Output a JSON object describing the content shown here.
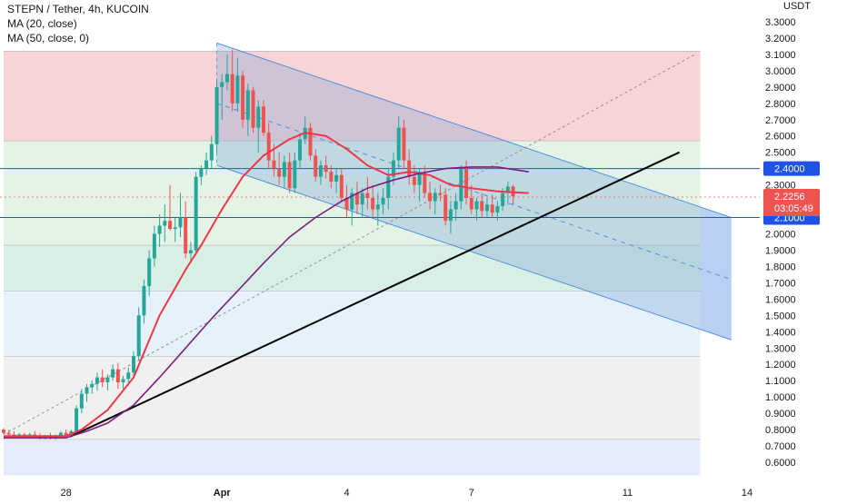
{
  "legend": {
    "title": "STEPN / Tether, 4h, KUCOIN",
    "ma20": "MA (20, close)",
    "ma50": "MA (50, close, 0)"
  },
  "currency": "USDT",
  "colors": {
    "up": "#26a69a",
    "down": "#ef5350",
    "ma20": "#f23645",
    "ma50": "#7b1e7a",
    "trendline": "#000000",
    "hline": "#1e53e5",
    "channel_line": "#4a90e2"
  },
  "chart_data": {
    "type": "candlestick",
    "symbol": "STEPN / Tether",
    "interval": "4h",
    "exchange": "KUCOIN",
    "ylim": [
      0.55,
      3.4
    ],
    "y_ticks": [
      "0.6000",
      "0.7000",
      "0.8000",
      "0.9000",
      "1.0000",
      "1.1000",
      "1.2000",
      "1.3000",
      "1.4000",
      "1.5000",
      "1.6000",
      "1.7000",
      "1.8000",
      "1.9000",
      "2.0000",
      "2.1000",
      "2.2000",
      "2.3000",
      "2.4000",
      "2.5000",
      "2.6000",
      "2.7000",
      "2.8000",
      "2.9000",
      "3.0000",
      "3.1000",
      "3.2000",
      "3.3000"
    ],
    "x_ticks": [
      {
        "label": "28",
        "bar": 12
      },
      {
        "label": "Apr",
        "bar": 42
      },
      {
        "label": "4",
        "bar": 66
      },
      {
        "label": "7",
        "bar": 90
      },
      {
        "label": "11",
        "bar": 120
      },
      {
        "label": "14",
        "bar": 143
      }
    ],
    "last_price": {
      "value": 2.2256,
      "label": "2.2256",
      "countdown": "03:05:49"
    },
    "horizontal_lines": [
      {
        "value": 2.4,
        "label": "2.4000"
      },
      {
        "value": 2.1,
        "label": "2.1000"
      }
    ],
    "fib_zones": [
      {
        "from": 2.57,
        "to": 3.12,
        "color": "#f7c6c8"
      },
      {
        "from": 1.93,
        "to": 2.57,
        "color": "#d9f0df"
      },
      {
        "from": 1.65,
        "to": 1.93,
        "color": "#c9eadb"
      },
      {
        "from": 1.25,
        "to": 1.65,
        "color": "#dcecf9"
      },
      {
        "from": 0.74,
        "to": 1.25,
        "color": "#ebebeb"
      },
      {
        "from": 0.52,
        "to": 0.74,
        "color": "#dde4fb"
      }
    ],
    "fib_zone_bars": [
      0,
      134
    ],
    "channel": {
      "upper": [
        {
          "bar": 41,
          "value": 3.17
        },
        {
          "bar": 140,
          "value": 2.1
        }
      ],
      "lower": [
        {
          "bar": 41,
          "value": 2.42
        },
        {
          "bar": 140,
          "value": 1.35
        }
      ],
      "mid": [
        {
          "bar": 41,
          "value": 2.8
        },
        {
          "bar": 140,
          "value": 1.72
        }
      ]
    },
    "channel_extension_bars": [
      134,
      140
    ],
    "trendline": [
      {
        "bar": 13,
        "value": 0.76
      },
      {
        "bar": 130,
        "value": 2.5
      }
    ],
    "diagonal_dotted": [
      {
        "bar": 0,
        "value": 0.77
      },
      {
        "bar": 133,
        "value": 3.1
      }
    ],
    "candles": [
      [
        0.8,
        0.81,
        0.77,
        0.78
      ],
      [
        0.78,
        0.8,
        0.76,
        0.77
      ],
      [
        0.77,
        0.79,
        0.75,
        0.76
      ],
      [
        0.76,
        0.78,
        0.75,
        0.77
      ],
      [
        0.77,
        0.78,
        0.75,
        0.76
      ],
      [
        0.76,
        0.78,
        0.75,
        0.77
      ],
      [
        0.77,
        0.79,
        0.75,
        0.76
      ],
      [
        0.76,
        0.78,
        0.74,
        0.75
      ],
      [
        0.75,
        0.77,
        0.74,
        0.76
      ],
      [
        0.76,
        0.78,
        0.74,
        0.75
      ],
      [
        0.75,
        0.77,
        0.74,
        0.76
      ],
      [
        0.76,
        0.79,
        0.75,
        0.78
      ],
      [
        0.78,
        0.8,
        0.75,
        0.76
      ],
      [
        0.76,
        0.8,
        0.75,
        0.79
      ],
      [
        0.79,
        0.95,
        0.78,
        0.93
      ],
      [
        0.93,
        1.05,
        0.9,
        1.02
      ],
      [
        1.02,
        1.08,
        0.97,
        1.06
      ],
      [
        1.06,
        1.1,
        1.02,
        1.08
      ],
      [
        1.08,
        1.15,
        1.04,
        1.12
      ],
      [
        1.12,
        1.17,
        1.06,
        1.09
      ],
      [
        1.09,
        1.14,
        1.04,
        1.12
      ],
      [
        1.12,
        1.2,
        1.1,
        1.17
      ],
      [
        1.17,
        1.21,
        1.05,
        1.09
      ],
      [
        1.09,
        1.13,
        1.05,
        1.11
      ],
      [
        1.11,
        1.18,
        1.07,
        1.15
      ],
      [
        1.15,
        1.28,
        1.12,
        1.25
      ],
      [
        1.25,
        1.55,
        1.22,
        1.5
      ],
      [
        1.5,
        1.72,
        1.45,
        1.68
      ],
      [
        1.68,
        1.9,
        1.62,
        1.85
      ],
      [
        1.85,
        2.05,
        1.8,
        2.0
      ],
      [
        2.0,
        2.12,
        1.92,
        2.05
      ],
      [
        2.05,
        2.18,
        1.95,
        2.08
      ],
      [
        2.08,
        2.3,
        2.02,
        2.03
      ],
      [
        2.03,
        2.1,
        1.95,
        2.04
      ],
      [
        2.04,
        2.25,
        1.98,
        2.1
      ],
      [
        2.1,
        2.2,
        1.85,
        1.88
      ],
      [
        1.88,
        1.95,
        1.82,
        1.9
      ],
      [
        1.9,
        2.38,
        1.87,
        2.35
      ],
      [
        2.35,
        2.42,
        2.3,
        2.4
      ],
      [
        2.4,
        2.5,
        2.36,
        2.45
      ],
      [
        2.45,
        2.6,
        2.4,
        2.55
      ],
      [
        2.55,
        2.95,
        2.5,
        2.9
      ],
      [
        2.9,
        2.98,
        2.7,
        2.93
      ],
      [
        2.93,
        3.1,
        2.88,
        2.98
      ],
      [
        2.98,
        3.13,
        2.75,
        2.8
      ],
      [
        2.8,
        3.08,
        2.75,
        2.97
      ],
      [
        2.97,
        3.0,
        2.65,
        2.7
      ],
      [
        2.7,
        2.92,
        2.6,
        2.88
      ],
      [
        2.88,
        2.9,
        2.62,
        2.65
      ],
      [
        2.65,
        2.82,
        2.5,
        2.78
      ],
      [
        2.78,
        2.82,
        2.6,
        2.62
      ],
      [
        2.62,
        2.68,
        2.4,
        2.45
      ],
      [
        2.45,
        2.55,
        2.35,
        2.4
      ],
      [
        2.4,
        2.5,
        2.3,
        2.35
      ],
      [
        2.35,
        2.48,
        2.28,
        2.44
      ],
      [
        2.44,
        2.5,
        2.25,
        2.28
      ],
      [
        2.28,
        2.5,
        2.25,
        2.45
      ],
      [
        2.45,
        2.62,
        2.4,
        2.58
      ],
      [
        2.58,
        2.72,
        2.55,
        2.65
      ],
      [
        2.65,
        2.68,
        2.45,
        2.48
      ],
      [
        2.48,
        2.52,
        2.32,
        2.35
      ],
      [
        2.35,
        2.45,
        2.3,
        2.42
      ],
      [
        2.42,
        2.48,
        2.34,
        2.38
      ],
      [
        2.38,
        2.42,
        2.28,
        2.32
      ],
      [
        2.32,
        2.4,
        2.25,
        2.36
      ],
      [
        2.36,
        2.4,
        2.2,
        2.22
      ],
      [
        2.22,
        2.3,
        2.1,
        2.15
      ],
      [
        2.15,
        2.28,
        2.05,
        2.25
      ],
      [
        2.25,
        2.32,
        2.12,
        2.18
      ],
      [
        2.18,
        2.28,
        2.1,
        2.25
      ],
      [
        2.25,
        2.35,
        2.15,
        2.22
      ],
      [
        2.22,
        2.3,
        2.1,
        2.15
      ],
      [
        2.15,
        2.25,
        2.05,
        2.18
      ],
      [
        2.18,
        2.28,
        2.12,
        2.22
      ],
      [
        2.22,
        2.4,
        2.15,
        2.35
      ],
      [
        2.35,
        2.5,
        2.3,
        2.45
      ],
      [
        2.45,
        2.72,
        2.4,
        2.65
      ],
      [
        2.65,
        2.7,
        2.4,
        2.45
      ],
      [
        2.45,
        2.52,
        2.3,
        2.35
      ],
      [
        2.35,
        2.42,
        2.25,
        2.3
      ],
      [
        2.3,
        2.4,
        2.2,
        2.38
      ],
      [
        2.38,
        2.42,
        2.22,
        2.25
      ],
      [
        2.25,
        2.32,
        2.15,
        2.2
      ],
      [
        2.2,
        2.28,
        2.12,
        2.25
      ],
      [
        2.25,
        2.3,
        2.2,
        2.24
      ],
      [
        2.24,
        2.28,
        2.05,
        2.08
      ],
      [
        2.08,
        2.2,
        2.0,
        2.15
      ],
      [
        2.15,
        2.25,
        2.08,
        2.2
      ],
      [
        2.2,
        2.42,
        2.15,
        2.4
      ],
      [
        2.4,
        2.45,
        2.18,
        2.22
      ],
      [
        2.22,
        2.3,
        2.12,
        2.15
      ],
      [
        2.15,
        2.22,
        2.08,
        2.2
      ],
      [
        2.2,
        2.25,
        2.1,
        2.14
      ],
      [
        2.14,
        2.22,
        2.1,
        2.18
      ],
      [
        2.18,
        2.24,
        2.1,
        2.13
      ],
      [
        2.13,
        2.2,
        2.08,
        2.17
      ],
      [
        2.17,
        2.28,
        2.14,
        2.25
      ],
      [
        2.25,
        2.32,
        2.18,
        2.29
      ],
      [
        2.29,
        2.3,
        2.18,
        2.23
      ]
    ],
    "ma20": [
      [
        0,
        0.76
      ],
      [
        12,
        0.76
      ],
      [
        15,
        0.8
      ],
      [
        20,
        0.92
      ],
      [
        25,
        1.12
      ],
      [
        30,
        1.5
      ],
      [
        35,
        1.78
      ],
      [
        38,
        1.93
      ],
      [
        42,
        2.15
      ],
      [
        46,
        2.35
      ],
      [
        50,
        2.48
      ],
      [
        55,
        2.58
      ],
      [
        58,
        2.62
      ],
      [
        62,
        2.6
      ],
      [
        66,
        2.52
      ],
      [
        70,
        2.42
      ],
      [
        74,
        2.36
      ],
      [
        78,
        2.38
      ],
      [
        82,
        2.36
      ],
      [
        86,
        2.3
      ],
      [
        90,
        2.28
      ],
      [
        95,
        2.26
      ],
      [
        101,
        2.25
      ]
    ],
    "ma50": [
      [
        0,
        0.75
      ],
      [
        12,
        0.75
      ],
      [
        16,
        0.79
      ],
      [
        20,
        0.84
      ],
      [
        25,
        0.95
      ],
      [
        30,
        1.12
      ],
      [
        35,
        1.3
      ],
      [
        40,
        1.48
      ],
      [
        45,
        1.65
      ],
      [
        50,
        1.82
      ],
      [
        55,
        1.98
      ],
      [
        60,
        2.1
      ],
      [
        65,
        2.2
      ],
      [
        70,
        2.28
      ],
      [
        75,
        2.33
      ],
      [
        80,
        2.37
      ],
      [
        85,
        2.4
      ],
      [
        90,
        2.41
      ],
      [
        95,
        2.41
      ],
      [
        101,
        2.38
      ]
    ]
  }
}
